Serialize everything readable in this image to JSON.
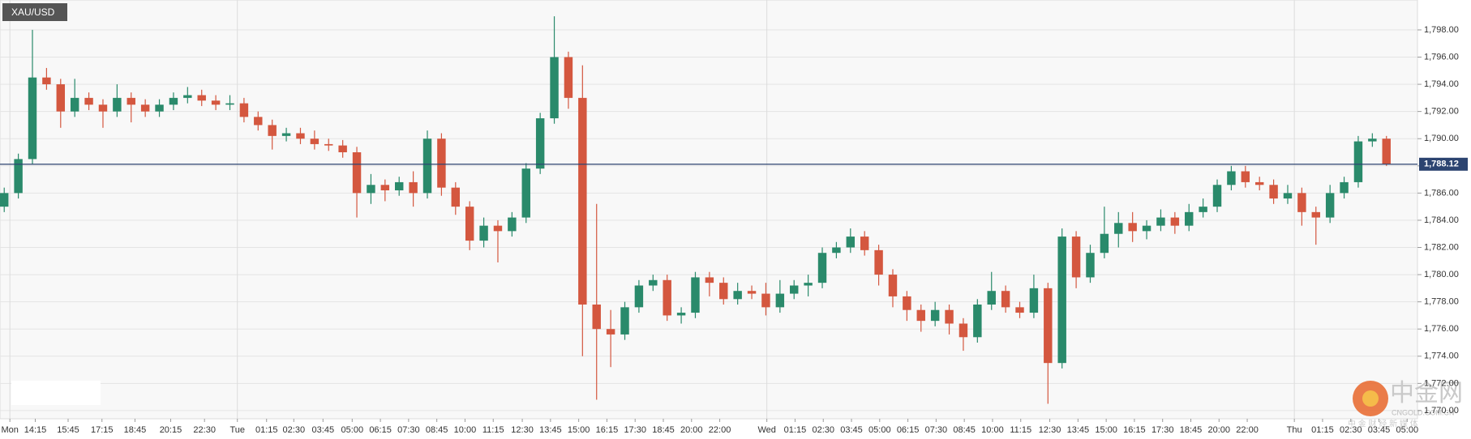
{
  "chart_data": {
    "type": "candlestick",
    "title": "XAU/USD",
    "x": [
      0,
      1,
      2,
      3,
      4,
      5,
      6,
      7,
      8,
      9,
      10,
      11,
      12,
      13,
      14,
      15,
      16,
      17,
      18,
      19,
      20,
      21,
      22,
      23,
      24,
      25,
      26,
      27,
      28,
      29,
      30,
      31,
      32,
      33,
      34,
      35,
      36,
      37,
      38,
      39,
      40,
      41,
      42,
      43,
      44,
      45,
      46,
      47,
      48,
      49,
      50,
      51,
      52,
      53,
      54,
      55,
      56,
      57,
      58,
      59,
      60,
      61,
      62,
      63,
      64,
      65,
      66,
      67,
      68,
      69,
      70,
      71,
      72,
      73,
      74,
      75,
      76,
      77,
      78,
      79,
      80,
      81,
      82,
      83,
      84,
      85,
      86,
      87,
      88,
      89,
      90,
      91,
      92,
      93,
      94,
      95,
      96,
      97,
      98
    ],
    "open": [
      1785.0,
      1786.0,
      1788.5,
      1794.5,
      1794.0,
      1792.0,
      1793.0,
      1792.5,
      1792.0,
      1793.0,
      1792.5,
      1792.0,
      1792.5,
      1793.0,
      1793.2,
      1792.8,
      1792.5,
      1792.6,
      1791.6,
      1791.0,
      1790.2,
      1790.4,
      1790.0,
      1789.6,
      1789.5,
      1789.0,
      1786.0,
      1786.6,
      1786.2,
      1786.8,
      1786.0,
      1790.0,
      1786.4,
      1785.0,
      1782.5,
      1783.6,
      1783.2,
      1784.2,
      1787.8,
      1791.5,
      1796.0,
      1793.0,
      1777.8,
      1776.0,
      1775.6,
      1777.6,
      1779.2,
      1779.6,
      1777.0,
      1777.2,
      1779.8,
      1779.4,
      1778.2,
      1778.8,
      1778.6,
      1777.6,
      1778.6,
      1779.2,
      1779.4,
      1781.6,
      1782.0,
      1782.8,
      1781.8,
      1780.0,
      1778.4,
      1777.4,
      1776.6,
      1777.4,
      1776.4,
      1775.4,
      1777.8,
      1778.8,
      1777.6,
      1777.2,
      1779.0,
      1773.5,
      1782.8,
      1779.8,
      1781.6,
      1783.0,
      1783.8,
      1783.2,
      1783.6,
      1784.2,
      1783.6,
      1784.6,
      1785.0,
      1786.6,
      1787.6,
      1786.8,
      1786.6,
      1785.6,
      1786.0,
      1784.6,
      1784.2,
      1786.0,
      1786.8,
      1789.8,
      1790.0
    ],
    "high": [
      1786.4,
      1788.9,
      1798.0,
      1795.2,
      1794.4,
      1794.4,
      1793.4,
      1792.9,
      1794.0,
      1793.4,
      1792.9,
      1792.9,
      1793.4,
      1793.8,
      1793.6,
      1793.2,
      1793.2,
      1793.0,
      1792.0,
      1791.4,
      1790.8,
      1790.8,
      1790.6,
      1790.0,
      1789.9,
      1789.4,
      1787.4,
      1787.0,
      1787.2,
      1787.6,
      1790.6,
      1790.4,
      1786.8,
      1785.4,
      1784.2,
      1784.0,
      1784.6,
      1788.2,
      1791.9,
      1799.0,
      1796.4,
      1795.4,
      1785.2,
      1777.4,
      1778.0,
      1779.6,
      1780.0,
      1780.0,
      1777.6,
      1780.2,
      1780.2,
      1779.8,
      1779.4,
      1779.2,
      1779.4,
      1779.6,
      1779.6,
      1780.0,
      1782.0,
      1782.4,
      1783.4,
      1783.2,
      1782.2,
      1780.4,
      1778.8,
      1777.8,
      1778.0,
      1777.8,
      1776.8,
      1778.2,
      1780.2,
      1779.2,
      1778.0,
      1780.0,
      1779.4,
      1783.4,
      1783.2,
      1782.2,
      1785.0,
      1784.6,
      1784.6,
      1784.0,
      1784.8,
      1784.6,
      1785.2,
      1785.6,
      1787.0,
      1788.0,
      1788.0,
      1787.2,
      1787.0,
      1786.6,
      1786.4,
      1785.0,
      1786.6,
      1787.2,
      1790.2,
      1790.4,
      1790.2
    ],
    "low": [
      1784.6,
      1785.6,
      1788.1,
      1793.6,
      1790.8,
      1791.6,
      1792.1,
      1790.8,
      1791.6,
      1791.2,
      1791.6,
      1791.6,
      1792.1,
      1792.6,
      1792.4,
      1792.1,
      1792.1,
      1791.2,
      1790.6,
      1789.2,
      1789.8,
      1789.6,
      1789.2,
      1789.1,
      1788.6,
      1784.2,
      1785.2,
      1785.4,
      1785.8,
      1785.0,
      1785.6,
      1785.8,
      1784.4,
      1781.8,
      1782.0,
      1780.9,
      1782.8,
      1783.8,
      1787.4,
      1791.1,
      1792.2,
      1774.0,
      1770.8,
      1773.2,
      1775.2,
      1777.2,
      1778.8,
      1776.6,
      1776.4,
      1776.8,
      1778.4,
      1777.8,
      1777.8,
      1778.2,
      1777.0,
      1777.2,
      1778.2,
      1778.4,
      1779.0,
      1781.2,
      1781.6,
      1781.4,
      1779.2,
      1777.6,
      1776.6,
      1775.8,
      1776.2,
      1775.6,
      1774.4,
      1775.0,
      1777.4,
      1777.2,
      1776.8,
      1776.8,
      1770.5,
      1773.1,
      1779.0,
      1779.4,
      1781.2,
      1782.0,
      1782.4,
      1782.6,
      1783.2,
      1783.0,
      1783.2,
      1784.2,
      1784.6,
      1786.2,
      1786.4,
      1786.2,
      1785.2,
      1785.2,
      1783.6,
      1782.2,
      1783.8,
      1785.6,
      1786.4,
      1789.4,
      1788.0
    ],
    "close": [
      1786.0,
      1788.5,
      1794.5,
      1794.0,
      1792.0,
      1793.0,
      1792.5,
      1792.0,
      1793.0,
      1792.5,
      1792.0,
      1792.5,
      1793.0,
      1793.2,
      1792.8,
      1792.5,
      1792.6,
      1791.6,
      1791.0,
      1790.2,
      1790.4,
      1790.0,
      1789.6,
      1789.5,
      1789.0,
      1786.0,
      1786.6,
      1786.2,
      1786.8,
      1786.0,
      1790.0,
      1786.4,
      1785.0,
      1782.5,
      1783.6,
      1783.2,
      1784.2,
      1787.8,
      1791.5,
      1796.0,
      1793.0,
      1777.8,
      1776.0,
      1775.6,
      1777.6,
      1779.2,
      1779.6,
      1777.0,
      1777.2,
      1779.8,
      1779.4,
      1778.2,
      1778.8,
      1778.6,
      1777.6,
      1778.6,
      1779.2,
      1779.4,
      1781.6,
      1782.0,
      1782.8,
      1781.8,
      1780.0,
      1778.4,
      1777.4,
      1776.6,
      1777.4,
      1776.4,
      1775.4,
      1777.8,
      1778.8,
      1777.6,
      1777.2,
      1779.0,
      1773.5,
      1782.8,
      1779.8,
      1781.6,
      1783.0,
      1783.8,
      1783.2,
      1783.6,
      1784.2,
      1783.6,
      1784.6,
      1785.0,
      1786.6,
      1787.6,
      1786.8,
      1786.6,
      1785.6,
      1786.0,
      1784.6,
      1784.2,
      1786.0,
      1786.8,
      1789.8,
      1790.0,
      1788.12
    ],
    "up_color": "#2a8a6b",
    "down_color": "#d4573f",
    "xlim": [
      -0.3,
      100.2
    ],
    "xticks": [
      {
        "value": 0.4,
        "label": "Mon"
      },
      {
        "value": 2.2,
        "label": "14:15"
      },
      {
        "value": 4.53,
        "label": "15:45"
      },
      {
        "value": 6.93,
        "label": "17:15"
      },
      {
        "value": 9.27,
        "label": "18:45"
      },
      {
        "value": 11.8,
        "label": "20:15"
      },
      {
        "value": 14.2,
        "label": "22:30"
      },
      {
        "value": 16.53,
        "label": "Tue"
      },
      {
        "value": 18.6,
        "label": "01:15"
      },
      {
        "value": 20.53,
        "label": "02:30"
      },
      {
        "value": 22.6,
        "label": "03:45"
      },
      {
        "value": 24.67,
        "label": "05:00"
      },
      {
        "value": 26.67,
        "label": "06:15"
      },
      {
        "value": 28.67,
        "label": "07:30"
      },
      {
        "value": 30.67,
        "label": "08:45"
      },
      {
        "value": 32.67,
        "label": "10:00"
      },
      {
        "value": 34.67,
        "label": "11:15"
      },
      {
        "value": 36.73,
        "label": "12:30"
      },
      {
        "value": 38.73,
        "label": "13:45"
      },
      {
        "value": 40.73,
        "label": "15:00"
      },
      {
        "value": 42.73,
        "label": "16:15"
      },
      {
        "value": 44.73,
        "label": "17:30"
      },
      {
        "value": 46.73,
        "label": "18:45"
      },
      {
        "value": 48.73,
        "label": "20:00"
      },
      {
        "value": 50.73,
        "label": "22:00"
      },
      {
        "value": 54.07,
        "label": "Wed"
      },
      {
        "value": 56.07,
        "label": "01:15"
      },
      {
        "value": 58.07,
        "label": "02:30"
      },
      {
        "value": 60.07,
        "label": "03:45"
      },
      {
        "value": 62.07,
        "label": "05:00"
      },
      {
        "value": 64.07,
        "label": "06:15"
      },
      {
        "value": 66.07,
        "label": "07:30"
      },
      {
        "value": 68.07,
        "label": "08:45"
      },
      {
        "value": 70.07,
        "label": "10:00"
      },
      {
        "value": 72.07,
        "label": "11:15"
      },
      {
        "value": 74.13,
        "label": "12:30"
      },
      {
        "value": 76.13,
        "label": "13:45"
      },
      {
        "value": 78.13,
        "label": "15:00"
      },
      {
        "value": 80.13,
        "label": "16:15"
      },
      {
        "value": 82.13,
        "label": "17:30"
      },
      {
        "value": 84.13,
        "label": "18:45"
      },
      {
        "value": 86.13,
        "label": "20:00"
      },
      {
        "value": 88.13,
        "label": "22:00"
      },
      {
        "value": 91.47,
        "label": "Thu"
      },
      {
        "value": 93.47,
        "label": "01:15"
      },
      {
        "value": 95.47,
        "label": "02:30"
      },
      {
        "value": 97.47,
        "label": "03:45"
      },
      {
        "value": 99.47,
        "label": "05:00"
      }
    ],
    "ylim": [
      1769.4,
      1800.2
    ],
    "yticks": [
      {
        "value": 1770,
        "label": "1,770.00"
      },
      {
        "value": 1772,
        "label": "1,772.00"
      },
      {
        "value": 1774,
        "label": "1,774.00"
      },
      {
        "value": 1776,
        "label": "1,776.00"
      },
      {
        "value": 1778,
        "label": "1,778.00"
      },
      {
        "value": 1780,
        "label": "1,780.00"
      },
      {
        "value": 1782,
        "label": "1,782.00"
      },
      {
        "value": 1784,
        "label": "1,784.00"
      },
      {
        "value": 1786,
        "label": "1,786.00"
      },
      {
        "value": 1788,
        "label": "1,788.00"
      },
      {
        "value": 1790,
        "label": "1,790.00"
      },
      {
        "value": 1792,
        "label": "1,792.00"
      },
      {
        "value": 1794,
        "label": "1,794.00"
      },
      {
        "value": 1796,
        "label": "1,796.00"
      },
      {
        "value": 1798,
        "label": "1,798.00"
      }
    ],
    "grid": true,
    "last_price": {
      "value": 1788.12,
      "label": "1,788.12",
      "color": "#2c4470"
    }
  },
  "watermark": {
    "name": "中金网",
    "site": "CNGOLD.COM.CN",
    "tagline": "中 金 财 经 新 媒 体"
  }
}
